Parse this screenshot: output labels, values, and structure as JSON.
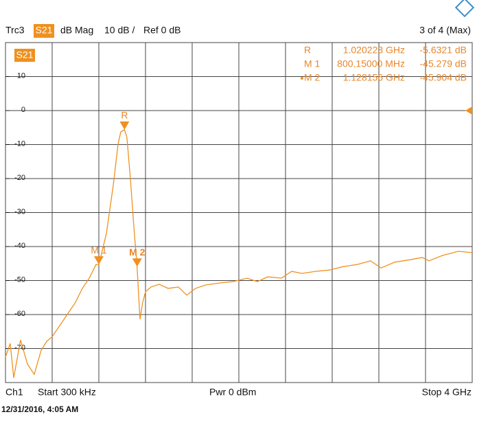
{
  "chart_data": {
    "type": "line",
    "header": {
      "trace": "Trc3",
      "param": "S21",
      "format": "dB Mag",
      "scale": "10 dB /",
      "reference": {
        "value": 0,
        "label": "Ref 0 dB"
      },
      "count": "3 of 4 (Max)"
    },
    "trace_badge": "S21",
    "footer": {
      "channel": "Ch1",
      "start": "Start 300 kHz",
      "power": "Pwr 0 dBm",
      "stop": "Stop 4 GHz"
    },
    "timestamp": "12/31/2016, 4:05 AM",
    "color": "#f0901e",
    "xlim": [
      0.0003,
      4
    ],
    "x_divisions": 10,
    "ylim": [
      -80,
      20
    ],
    "yticks": [
      10,
      0,
      -10,
      -20,
      -30,
      -40,
      -50,
      -60,
      -70
    ],
    "x": [
      0.0003,
      0.041,
      0.071,
      0.129,
      0.188,
      0.247,
      0.306,
      0.353,
      0.4,
      0.482,
      0.541,
      0.6,
      0.659,
      0.718,
      0.776,
      0.80015,
      0.865,
      0.924,
      0.965,
      0.988,
      1.020223,
      1.041,
      1.071,
      1.1,
      1.128156,
      1.153,
      1.176,
      1.2,
      1.247,
      1.318,
      1.394,
      1.482,
      1.553,
      1.629,
      1.718,
      1.835,
      1.953,
      2.071,
      2.159,
      2.247,
      2.365,
      2.453,
      2.541,
      2.659,
      2.776,
      2.894,
      3.012,
      3.129,
      3.218,
      3.335,
      3.482,
      3.571,
      3.629,
      3.747,
      3.882,
      4.0
    ],
    "values": [
      -72.5,
      -68.5,
      -78.6,
      -67.5,
      -74.5,
      -77.6,
      -70.5,
      -67.9,
      -66.5,
      -62.4,
      -59.4,
      -56.4,
      -52.3,
      -49.3,
      -45.3,
      -45.279,
      -36.2,
      -22.0,
      -9.9,
      -6.3,
      -5.6321,
      -7.9,
      -20.0,
      -34.1,
      -45.904,
      -61.4,
      -56.4,
      -53.3,
      -51.9,
      -51.1,
      -52.3,
      -51.9,
      -54.3,
      -52.3,
      -51.3,
      -50.7,
      -50.3,
      -49.3,
      -50.3,
      -48.9,
      -49.3,
      -47.3,
      -47.9,
      -47.3,
      -46.9,
      -45.9,
      -45.3,
      -44.2,
      -46.3,
      -44.6,
      -43.8,
      -43.2,
      -44.2,
      -42.6,
      -41.4,
      -41.8
    ],
    "markers": [
      {
        "name": "R",
        "x": 1.020223,
        "y": -5.6321,
        "x_label": "1.020223 GHz",
        "y_label": "-5.6321 dB",
        "active": false
      },
      {
        "name": "M 1",
        "x": 0.80015,
        "y": -45.279,
        "x_label": "800.15000 MHz",
        "y_label": "-45.279 dB",
        "active": false
      },
      {
        "name": "M 2",
        "x": 1.128156,
        "y": -45.904,
        "x_label": "1.128156 GHz",
        "y_label": "-45.904 dB",
        "active": true
      }
    ]
  }
}
